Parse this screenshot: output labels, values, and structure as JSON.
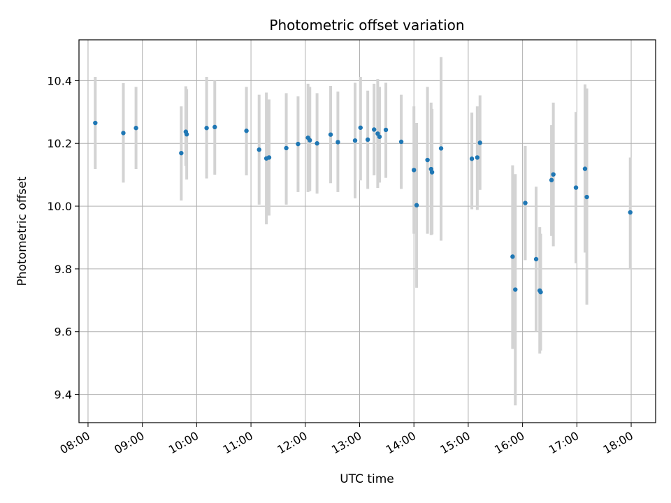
{
  "chart_data": {
    "type": "scatter",
    "title": "Photometric offset variation",
    "xlabel": "UTC time",
    "ylabel": "Photometric offset",
    "grid": true,
    "xlim": [
      "07:50",
      "18:27"
    ],
    "ylim": [
      9.31,
      10.53
    ],
    "x_ticks": [
      "08:00",
      "09:00",
      "10:00",
      "11:00",
      "12:00",
      "13:00",
      "14:00",
      "15:00",
      "16:00",
      "17:00",
      "18:00"
    ],
    "y_ticks": [
      9.4,
      9.6,
      9.8,
      10.0,
      10.2,
      10.4
    ],
    "y_tick_labels": [
      "9.4",
      "9.6",
      "9.8",
      "10.0",
      "10.2",
      "10.4"
    ],
    "point_color": "#1f77b4",
    "errorbar_color": "#d3d3d3",
    "series": [
      {
        "x": [
          "08:08",
          "08:39",
          "08:53",
          "09:43",
          "09:48",
          "09:49",
          "10:11",
          "10:20",
          "10:55",
          "11:09",
          "11:17",
          "11:20",
          "11:39",
          "11:52",
          "12:03",
          "12:05",
          "12:13",
          "12:28",
          "12:36",
          "12:55",
          "13:01",
          "13:09",
          "13:16",
          "13:20",
          "13:22",
          "13:29",
          "13:46",
          "14:00",
          "14:03",
          "14:15",
          "14:19",
          "14:20",
          "14:30",
          "15:04",
          "15:10",
          "15:13",
          "15:49",
          "15:52",
          "16:03",
          "16:15",
          "16:19",
          "16:20",
          "16:32",
          "16:34",
          "16:59",
          "17:09",
          "17:11",
          "17:59"
        ],
        "y": [
          10.265,
          10.233,
          10.249,
          10.169,
          10.237,
          10.229,
          10.249,
          10.252,
          10.24,
          10.18,
          10.152,
          10.155,
          10.185,
          10.198,
          10.218,
          10.21,
          10.2,
          10.228,
          10.204,
          10.209,
          10.25,
          10.212,
          10.244,
          10.231,
          10.221,
          10.243,
          10.205,
          10.115,
          10.003,
          10.147,
          10.118,
          10.108,
          10.184,
          10.151,
          10.155,
          10.202,
          9.839,
          9.734,
          10.01,
          9.831,
          9.731,
          9.726,
          10.083,
          10.101,
          10.059,
          10.119,
          10.029,
          9.98
        ],
        "err_low": [
          10.118,
          10.075,
          10.118,
          10.018,
          10.128,
          10.085,
          10.088,
          10.1,
          10.098,
          10.005,
          9.942,
          9.97,
          10.005,
          10.045,
          10.045,
          10.048,
          10.04,
          10.073,
          10.045,
          10.025,
          10.082,
          10.055,
          10.098,
          10.058,
          10.075,
          10.09,
          10.055,
          9.912,
          9.74,
          9.912,
          9.908,
          9.91,
          9.89,
          9.99,
          9.988,
          10.052,
          9.545,
          9.365,
          9.828,
          9.6,
          9.53,
          9.54,
          9.905,
          9.872,
          9.818,
          9.852,
          9.686,
          9.798
        ],
        "err_high": [
          10.412,
          10.392,
          10.38,
          10.318,
          10.382,
          10.373,
          10.412,
          10.4,
          10.38,
          10.355,
          10.362,
          10.34,
          10.36,
          10.35,
          10.39,
          10.38,
          10.36,
          10.383,
          10.365,
          10.393,
          10.412,
          10.368,
          10.39,
          10.405,
          10.38,
          10.393,
          10.355,
          10.318,
          10.265,
          10.38,
          10.33,
          10.31,
          10.475,
          10.298,
          10.318,
          10.353,
          10.13,
          10.102,
          10.192,
          10.062,
          9.933,
          9.912,
          10.258,
          10.33,
          10.3,
          10.388,
          10.375,
          10.155
        ]
      }
    ]
  }
}
